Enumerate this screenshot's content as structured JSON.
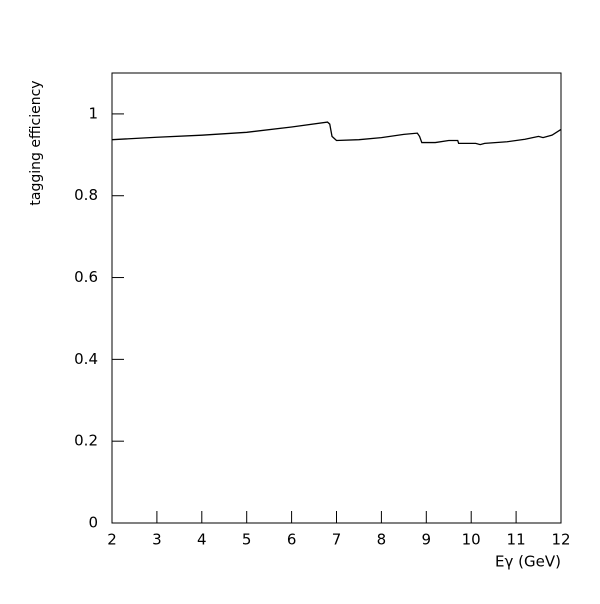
{
  "chart_data": {
    "type": "line",
    "xlabel": "Eγ (GeV)",
    "ylabel": "tagging efficiency",
    "x": [
      2,
      3,
      4,
      5,
      6,
      6.8,
      6.85,
      6.9,
      7.0,
      7.5,
      8,
      8.5,
      8.8,
      8.85,
      8.9,
      9.2,
      9.5,
      9.7,
      9.72,
      10.1,
      10.2,
      10.3,
      10.8,
      11.2,
      11.5,
      11.6,
      11.8,
      12
    ],
    "series": [
      {
        "color": "#000000",
        "values": [
          0.937,
          0.943,
          0.948,
          0.955,
          0.968,
          0.98,
          0.975,
          0.945,
          0.935,
          0.937,
          0.942,
          0.95,
          0.953,
          0.945,
          0.93,
          0.93,
          0.935,
          0.935,
          0.928,
          0.928,
          0.925,
          0.928,
          0.932,
          0.938,
          0.945,
          0.942,
          0.948,
          0.962
        ]
      }
    ],
    "xlim": [
      2,
      12
    ],
    "ylim": [
      0,
      1.1
    ],
    "xticks": [
      2,
      3,
      4,
      5,
      6,
      7,
      8,
      9,
      10,
      11,
      12
    ],
    "yticks": [
      0,
      0.2,
      0.4,
      0.6,
      0.8,
      1
    ]
  }
}
